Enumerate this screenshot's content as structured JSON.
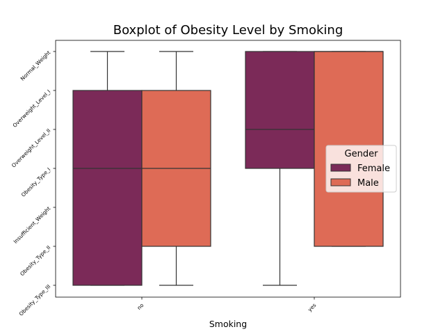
{
  "chart_data": {
    "type": "boxplot",
    "title": "Boxplot of Obesity Level by Smoking",
    "xlabel": "Smoking",
    "ylabel": "",
    "categories": [
      "no",
      "yes"
    ],
    "y_categories": [
      "Normal_Weight",
      "Overweight_Level_I",
      "Overweight_Level_II",
      "Obesity_Type_I",
      "Insufficient_Weight",
      "Obesity_Type_II",
      "Obesity_Type_III"
    ],
    "legend": {
      "title": "Gender",
      "position": "center-right"
    },
    "series": [
      {
        "name": "Female",
        "color": "#7b2a58",
        "boxes": [
          {
            "category": "no",
            "whisker_low": "Obesity_Type_III",
            "q1": "Obesity_Type_III",
            "median": "Obesity_Type_I",
            "q3": "Overweight_Level_I",
            "whisker_high": "Normal_Weight"
          },
          {
            "category": "yes",
            "whisker_low": "Obesity_Type_III",
            "q1": "Obesity_Type_I",
            "median": "Overweight_Level_II",
            "q3": "Normal_Weight",
            "whisker_high": "Normal_Weight"
          }
        ]
      },
      {
        "name": "Male",
        "color": "#de6b56",
        "boxes": [
          {
            "category": "no",
            "whisker_low": "Obesity_Type_III",
            "q1": "Obesity_Type_II",
            "median": "Obesity_Type_I",
            "q3": "Overweight_Level_I",
            "whisker_high": "Normal_Weight"
          },
          {
            "category": "yes",
            "whisker_low": "Obesity_Type_II",
            "q1": "Obesity_Type_II",
            "median": "Normal_Weight",
            "q3": "Normal_Weight",
            "whisker_high": "Normal_Weight"
          }
        ]
      }
    ],
    "grid": false
  }
}
